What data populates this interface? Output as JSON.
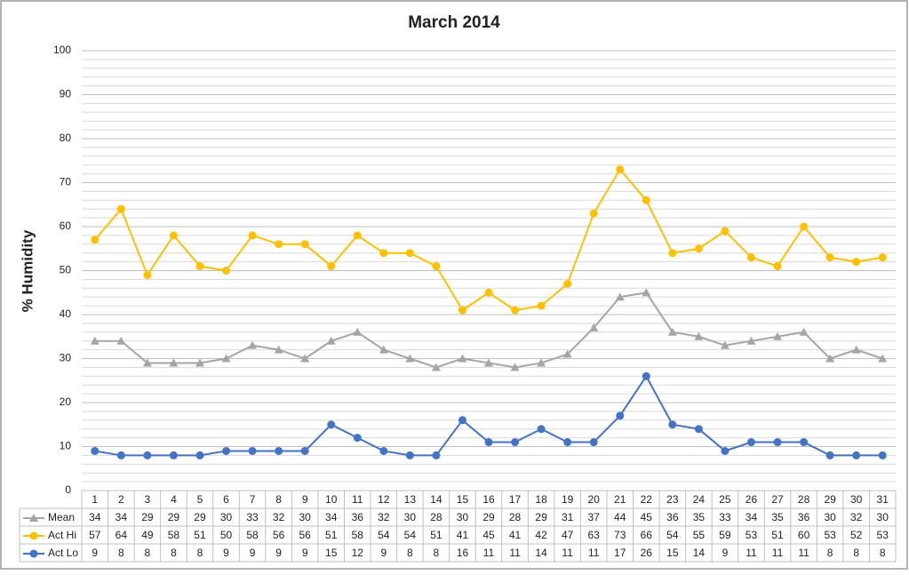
{
  "chart_data": {
    "type": "line",
    "title": "March 2014",
    "y_label": "% Humidity",
    "categories": [
      "1",
      "2",
      "3",
      "4",
      "5",
      "6",
      "7",
      "8",
      "9",
      "10",
      "11",
      "12",
      "13",
      "14",
      "15",
      "16",
      "17",
      "18",
      "19",
      "20",
      "21",
      "22",
      "23",
      "24",
      "25",
      "26",
      "27",
      "28",
      "29",
      "30",
      "31"
    ],
    "series": [
      {
        "name": "Mean",
        "color": "#a5a5a5",
        "marker": "triangle",
        "values": [
          34,
          34,
          29,
          29,
          29,
          30,
          33,
          32,
          30,
          34,
          36,
          32,
          30,
          28,
          30,
          29,
          28,
          29,
          31,
          37,
          44,
          45,
          36,
          35,
          33,
          34,
          35,
          36,
          30,
          32,
          30
        ]
      },
      {
        "name": "Act Hi",
        "color": "#ffc000",
        "marker": "circle",
        "values": [
          57,
          64,
          49,
          58,
          51,
          50,
          58,
          56,
          56,
          51,
          58,
          54,
          54,
          51,
          41,
          45,
          41,
          42,
          47,
          63,
          73,
          66,
          54,
          55,
          59,
          53,
          51,
          60,
          53,
          52,
          53
        ]
      },
      {
        "name": "Act Lo",
        "color": "#4472c4",
        "marker": "circle",
        "values": [
          9,
          8,
          8,
          8,
          8,
          9,
          9,
          9,
          9,
          15,
          12,
          9,
          8,
          8,
          16,
          11,
          11,
          14,
          11,
          11,
          17,
          26,
          15,
          14,
          9,
          11,
          11,
          11,
          8,
          8,
          8
        ]
      }
    ],
    "ylim": [
      0,
      100
    ],
    "yticks": [
      0,
      10,
      20,
      30,
      40,
      50,
      60,
      70,
      80,
      90,
      100
    ],
    "grid": true,
    "minor_grid_step": 2,
    "data_table": true
  }
}
